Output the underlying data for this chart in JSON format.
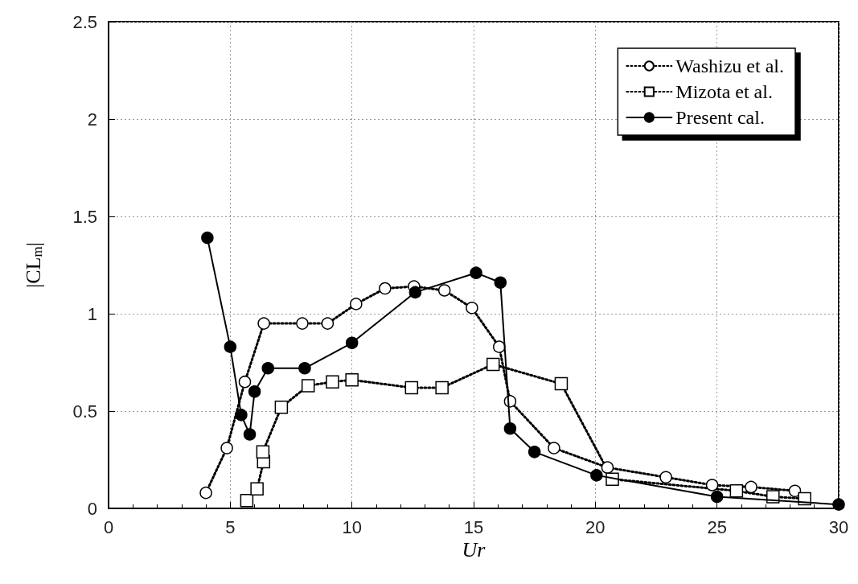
{
  "chart_data": {
    "type": "line",
    "xlabel": "Ur",
    "ylabel": "|CL$_{m}$|",
    "xlim": [
      0,
      30
    ],
    "xticks": [
      0,
      5,
      10,
      15,
      20,
      25,
      30
    ],
    "ylim": [
      0,
      2.5
    ],
    "yticks": [
      0,
      0.5,
      1,
      1.5,
      2,
      2.5
    ],
    "grid": true,
    "legend": "top right",
    "series": [
      {
        "name": "Washizu et al.",
        "color": "#000000",
        "marker": "circle",
        "line_style": "dotted",
        "x": [
          4.0,
          4.86,
          5.6,
          6.38,
          7.96,
          9.0,
          10.17,
          11.36,
          12.55,
          13.8,
          14.93,
          16.05,
          16.5,
          18.3,
          20.5,
          22.9,
          24.8,
          26.4,
          28.2
        ],
        "values": [
          0.08,
          0.31,
          0.65,
          0.95,
          0.95,
          0.95,
          1.05,
          1.13,
          1.14,
          1.12,
          1.03,
          0.83,
          0.55,
          0.31,
          0.21,
          0.16,
          0.12,
          0.11,
          0.09
        ]
      },
      {
        "name": "Mizota et al.",
        "color": "#000000",
        "marker": "square",
        "line_style": "dotted",
        "x": [
          5.68,
          6.1,
          6.37,
          6.34,
          7.1,
          8.2,
          9.2,
          10.0,
          12.45,
          13.7,
          15.8,
          18.6,
          20.7,
          25.8,
          27.3,
          28.6
        ],
        "values": [
          0.04,
          0.1,
          0.24,
          0.29,
          0.52,
          0.63,
          0.65,
          0.66,
          0.62,
          0.62,
          0.74,
          0.64,
          0.15,
          0.09,
          0.06,
          0.05
        ]
      },
      {
        "name": "Present cal.",
        "color": "#000000",
        "marker": "circle",
        "line_style": "solid",
        "x": [
          4.06,
          5.0,
          5.45,
          5.8,
          6.0,
          6.55,
          8.06,
          10.0,
          12.6,
          15.1,
          16.1,
          16.5,
          17.5,
          20.05,
          25.0,
          30.0
        ],
        "values": [
          1.39,
          0.83,
          0.48,
          0.38,
          0.6,
          0.72,
          0.72,
          0.85,
          1.11,
          1.21,
          1.16,
          0.41,
          0.29,
          0.17,
          0.06,
          0.02
        ]
      }
    ]
  }
}
